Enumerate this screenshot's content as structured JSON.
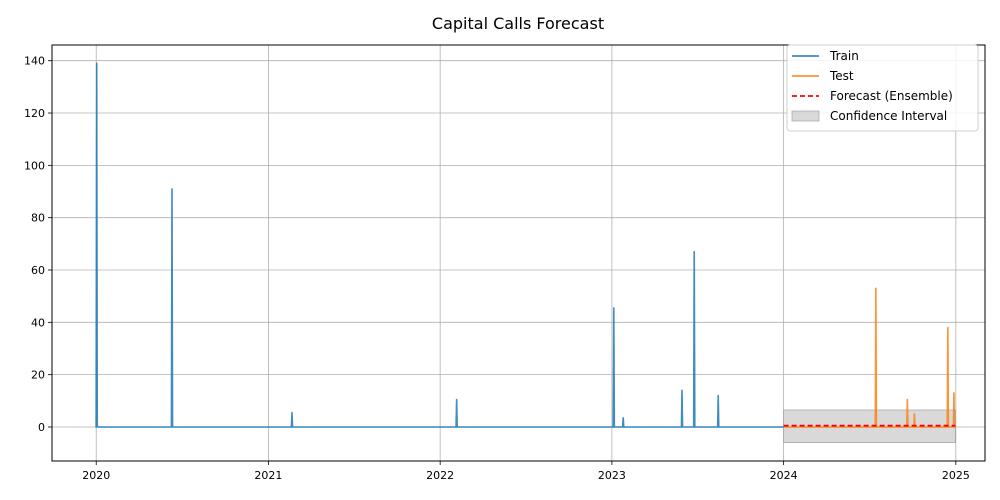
{
  "chart_data": {
    "type": "line",
    "title": "Capital Calls Forecast",
    "xlabel": "",
    "ylabel": "",
    "xlim": [
      "2019-09-29",
      "2025-03-04"
    ],
    "ylim": [
      -13,
      146
    ],
    "grid": true,
    "legend_position": "upper right",
    "x_ticks": [
      {
        "date": "2020-01-01",
        "label": "2020"
      },
      {
        "date": "2021-01-01",
        "label": "2021"
      },
      {
        "date": "2022-01-01",
        "label": "2022"
      },
      {
        "date": "2023-01-01",
        "label": "2023"
      },
      {
        "date": "2024-01-01",
        "label": "2024"
      },
      {
        "date": "2025-01-01",
        "label": "2025"
      }
    ],
    "y_ticks": [
      0,
      20,
      40,
      60,
      80,
      100,
      120,
      140
    ],
    "y_tick_labels": [
      "0",
      "20",
      "40",
      "60",
      "80",
      "100",
      "120",
      "140"
    ],
    "legend": [
      {
        "label": "Train",
        "style": "line",
        "color": "#1f77b4"
      },
      {
        "label": "Test",
        "style": "line",
        "color": "#ff7f0e"
      },
      {
        "label": "Forecast (Ensemble)",
        "style": "dashed",
        "color": "#ff0000"
      },
      {
        "label": "Confidence Interval",
        "style": "patch",
        "color": "#bfbfbf"
      }
    ],
    "series": [
      {
        "name": "Train",
        "color": "#1f77b4",
        "start": "2020-01-01",
        "end": "2024-01-01",
        "spikes": [
          {
            "date": "2020-01-02",
            "value": 139
          },
          {
            "date": "2020-06-10",
            "value": 91
          },
          {
            "date": "2021-02-20",
            "value": 5.5
          },
          {
            "date": "2022-02-05",
            "value": 10.5
          },
          {
            "date": "2023-01-05",
            "value": 45.5
          },
          {
            "date": "2023-01-25",
            "value": 3.5
          },
          {
            "date": "2023-05-30",
            "value": 14
          },
          {
            "date": "2023-06-25",
            "value": 67
          },
          {
            "date": "2023-08-15",
            "value": 12
          }
        ]
      },
      {
        "name": "Test",
        "color": "#ff7f0e",
        "start": "2024-01-01",
        "end": "2024-12-31",
        "spikes": [
          {
            "date": "2024-07-15",
            "value": 53
          },
          {
            "date": "2024-09-20",
            "value": 10.5
          },
          {
            "date": "2024-10-05",
            "value": 5
          },
          {
            "date": "2024-12-15",
            "value": 38
          },
          {
            "date": "2024-12-28",
            "value": 13
          }
        ]
      },
      {
        "name": "Forecast (Ensemble)",
        "color": "#ff0000",
        "start": "2024-01-01",
        "end": "2024-12-31",
        "value": 0.5
      }
    ],
    "confidence_interval": {
      "name": "Confidence Interval",
      "start": "2024-01-01",
      "end": "2024-12-31",
      "lower": -6,
      "upper": 6.5,
      "color": "#bfbfbf"
    }
  }
}
